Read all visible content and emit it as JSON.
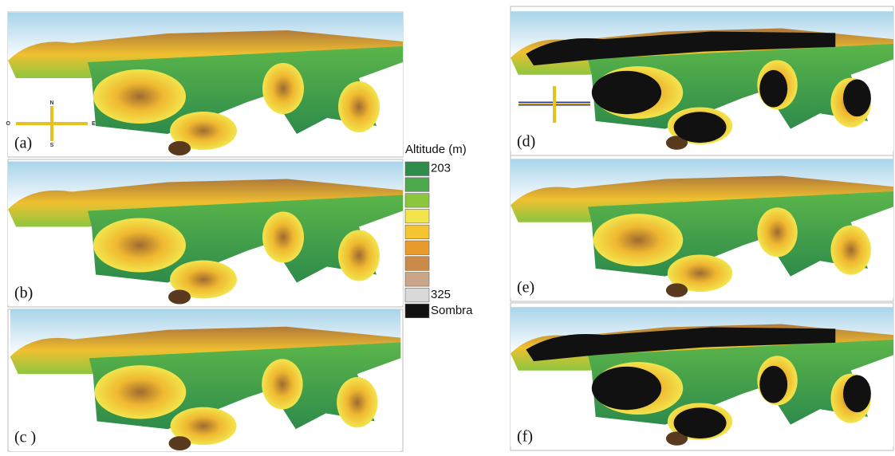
{
  "panels": [
    {
      "label": "(a)",
      "shadow": false
    },
    {
      "label": "(b)",
      "shadow": false
    },
    {
      "label": "(c )",
      "shadow": false
    },
    {
      "label": "(d)",
      "shadow": true
    },
    {
      "label": "(e)",
      "shadow": false
    },
    {
      "label": "(f)",
      "shadow": true
    }
  ],
  "legend": {
    "title": "Altitude (m)",
    "swatches": [
      "#2e8b4a",
      "#4caa4c",
      "#8cc63f",
      "#f2e44c",
      "#f5c431",
      "#e89a2c",
      "#c98a4a",
      "#c9a589",
      "#d9d9d9",
      "#111111"
    ],
    "min_label": "203",
    "max_label": "325",
    "shadow_label": "Sombra"
  },
  "compass": {
    "north": "N",
    "south": "S",
    "east": "E",
    "west": "O"
  }
}
